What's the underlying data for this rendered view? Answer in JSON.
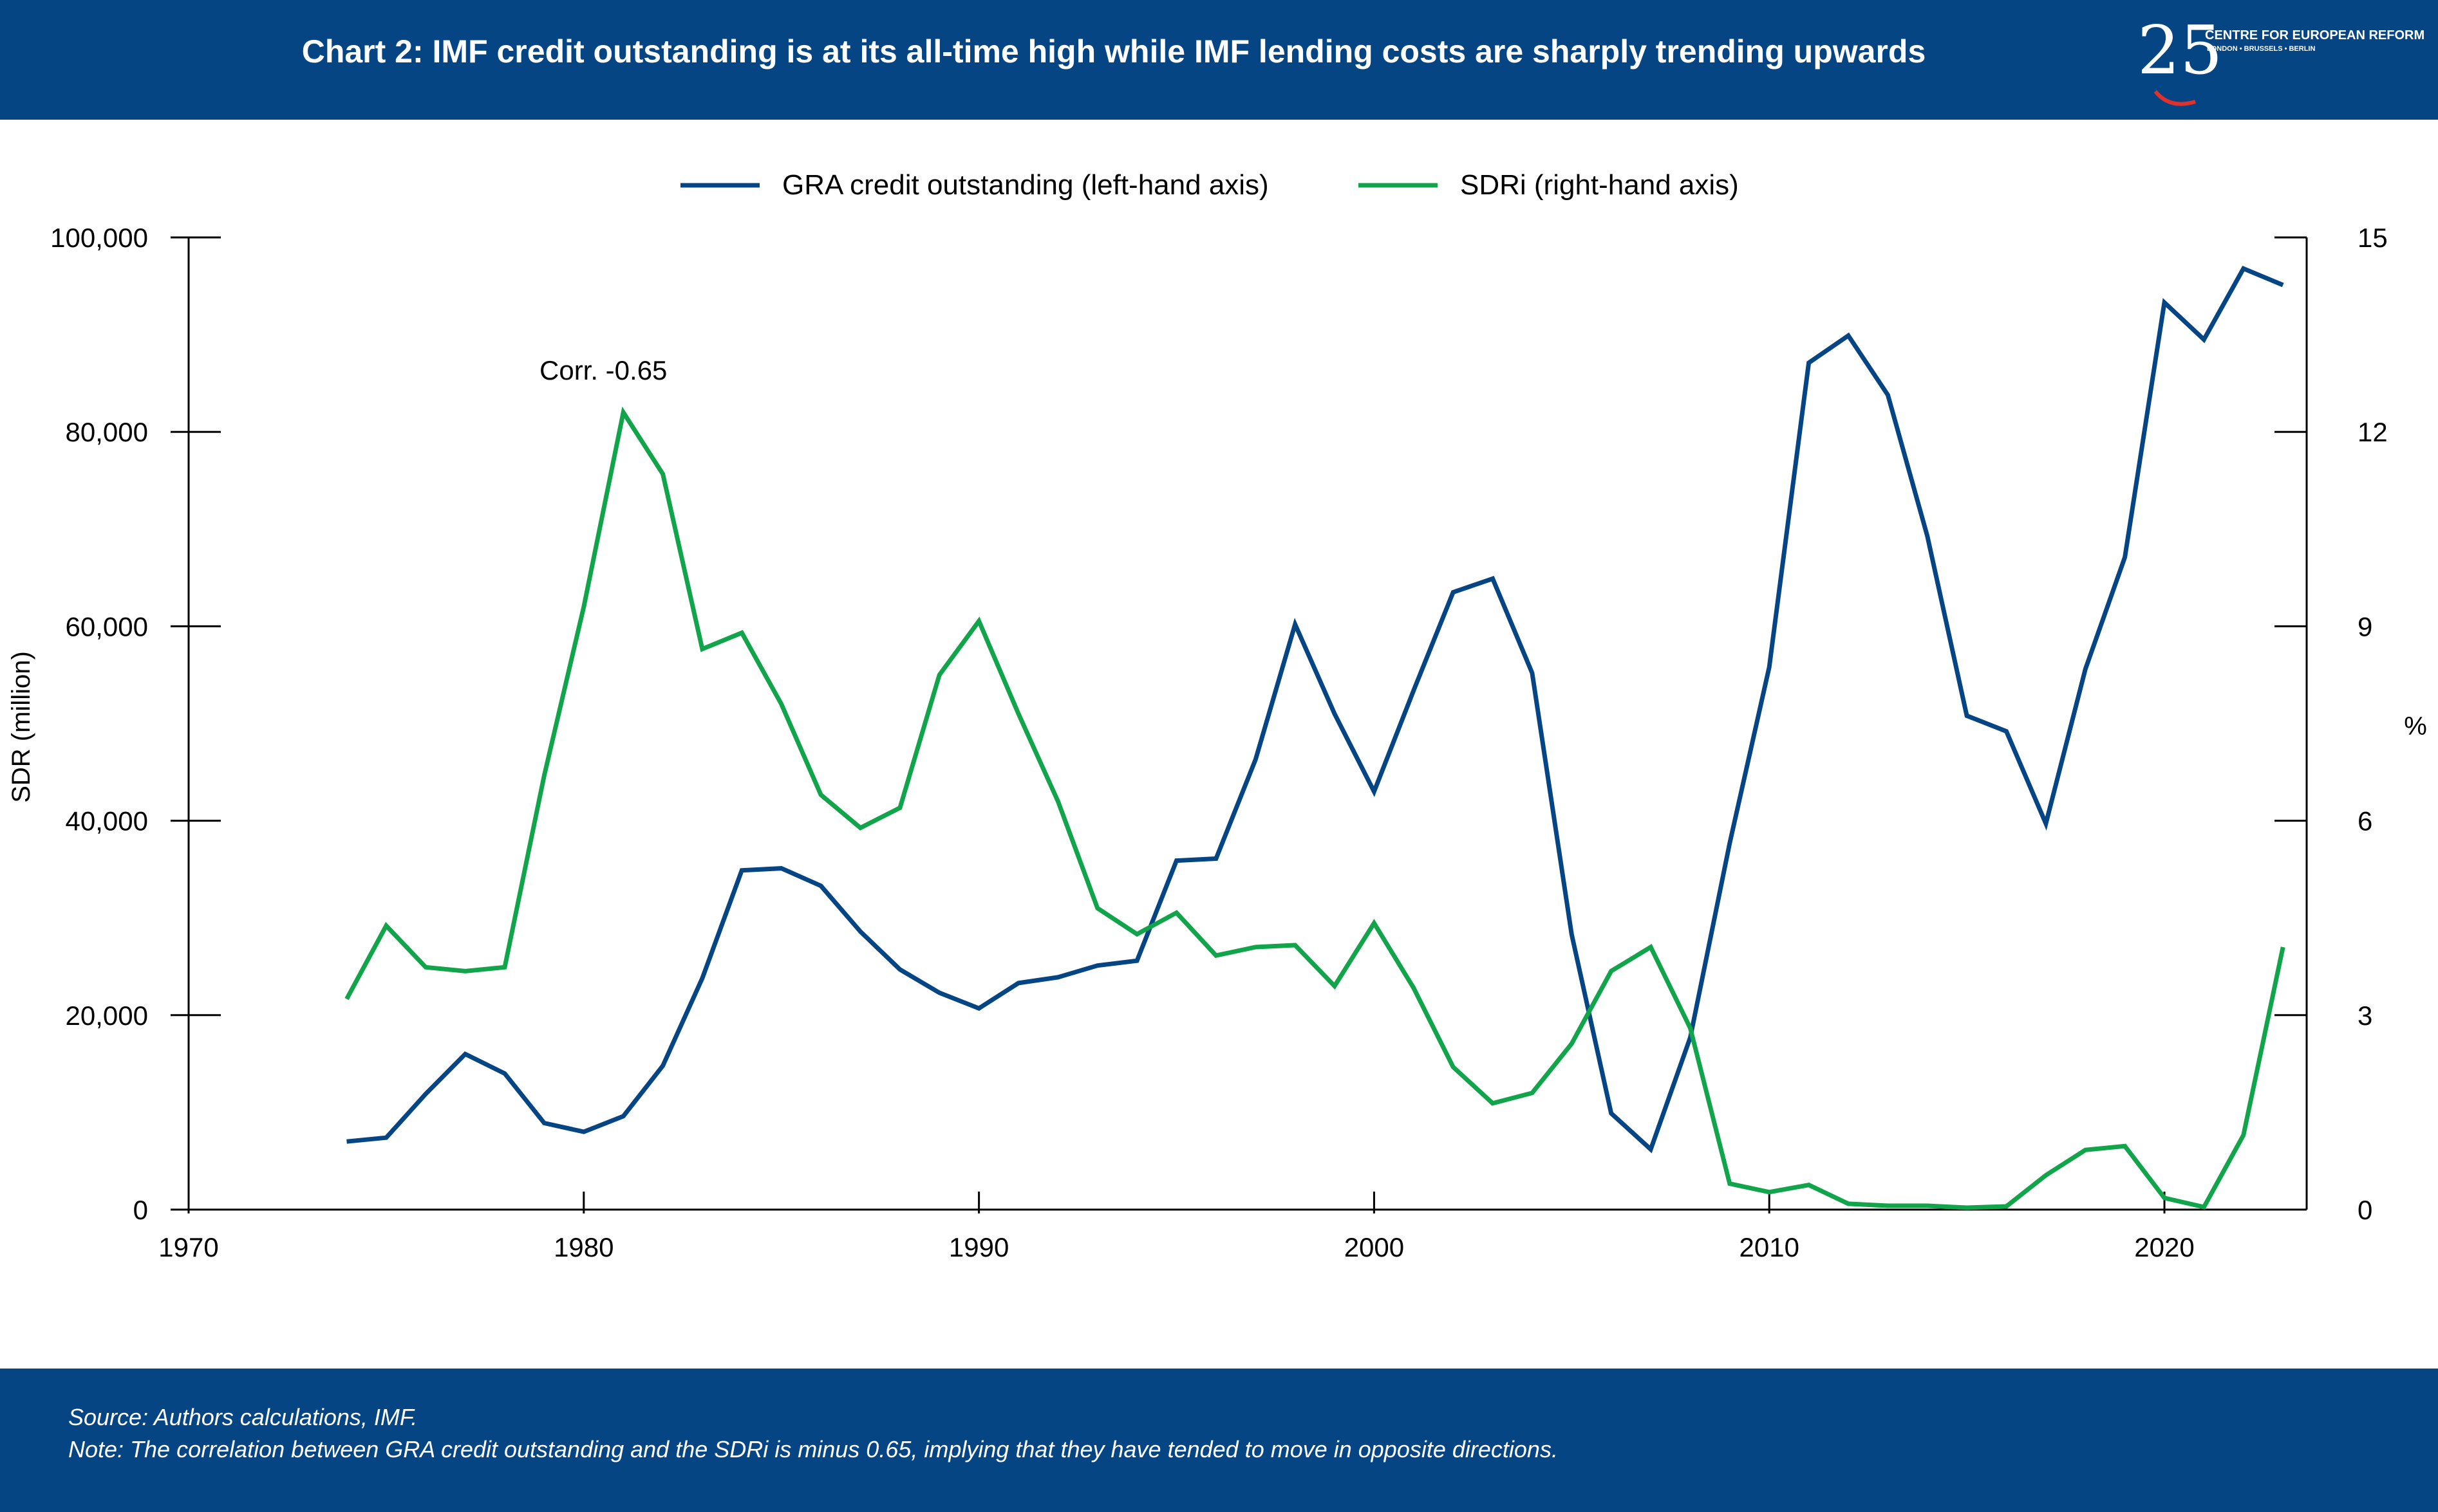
{
  "header": {
    "title": "Chart 2: IMF credit outstanding is at its all-time high while IMF lending costs are sharply trending upwards",
    "logo": {
      "number": "25",
      "line1": "CENTRE FOR EUROPEAN REFORM",
      "line2": "LONDON • BRUSSELS • BERLIN"
    }
  },
  "colors": {
    "header_bg": "#054584",
    "gra": "#054584",
    "sdri": "#11A44A",
    "axis": "#000000"
  },
  "chart_data": {
    "type": "line",
    "legend_position": "top-center",
    "grid": false,
    "annotation": "Corr. -0.65",
    "xlim": [
      1970,
      2023.6
    ],
    "x_ticks": [
      1970,
      1980,
      1990,
      2000,
      2010,
      2020
    ],
    "left_axis": {
      "label": "SDR (million)",
      "ylim": [
        0,
        100000
      ],
      "ticks": [
        0,
        20000,
        40000,
        60000,
        80000,
        100000
      ],
      "tick_labels": [
        "0",
        "20,000",
        "40,000",
        "60,000",
        "80,000",
        "100,000"
      ]
    },
    "right_axis": {
      "label": "%",
      "ylim": [
        0,
        15
      ],
      "ticks": [
        0,
        3,
        6,
        9,
        12,
        15
      ],
      "tick_labels": [
        "0",
        "3",
        "6",
        "9",
        "12",
        "15"
      ]
    },
    "x": [
      1974,
      1975,
      1976,
      1977,
      1978,
      1979,
      1980,
      1981,
      1982,
      1983,
      1984,
      1985,
      1986,
      1987,
      1988,
      1989,
      1990,
      1991,
      1992,
      1993,
      1994,
      1995,
      1996,
      1997,
      1998,
      1999,
      2000,
      2001,
      2002,
      2003,
      2004,
      2005,
      2006,
      2007,
      2008,
      2009,
      2010,
      2011,
      2012,
      2013,
      2014,
      2015,
      2016,
      2017,
      2018,
      2019,
      2020,
      2021,
      2022,
      2023
    ],
    "series": [
      {
        "name": "GRA credit outstanding (left-hand axis)",
        "axis": "left",
        "values": [
          7000,
          7400,
          11900,
          16000,
          14000,
          8900,
          8000,
          9600,
          14800,
          23800,
          34900,
          35100,
          33300,
          28600,
          24700,
          22300,
          20700,
          23300,
          23900,
          25100,
          25600,
          35900,
          36100,
          46300,
          60200,
          51000,
          43000,
          53400,
          63500,
          64900,
          55200,
          28300,
          9900,
          6200,
          17700,
          37700,
          55800,
          87100,
          89900,
          83800,
          69300,
          50800,
          49200,
          39700,
          55600,
          67100,
          93300,
          89500,
          96800,
          95100
        ]
      },
      {
        "name": "SDRi (right-hand axis)",
        "axis": "right",
        "values": [
          3.25,
          4.38,
          3.74,
          3.68,
          3.74,
          6.7,
          9.3,
          12.3,
          11.35,
          8.65,
          8.9,
          7.8,
          6.4,
          5.89,
          6.2,
          8.25,
          9.08,
          7.65,
          6.3,
          4.65,
          4.25,
          4.58,
          3.92,
          4.05,
          4.08,
          3.45,
          4.42,
          3.42,
          2.2,
          1.64,
          1.8,
          2.56,
          3.68,
          4.05,
          2.8,
          0.4,
          0.27,
          0.38,
          0.09,
          0.06,
          0.06,
          0.03,
          0.05,
          0.53,
          0.92,
          0.98,
          0.18,
          0.04,
          1.15,
          4.05
        ]
      }
    ]
  },
  "footer": {
    "source": "Source: Authors calculations, IMF.",
    "note": "Note:  The correlation between GRA credit outstanding and the SDRi is minus 0.65, implying that they have tended to move in opposite directions."
  }
}
